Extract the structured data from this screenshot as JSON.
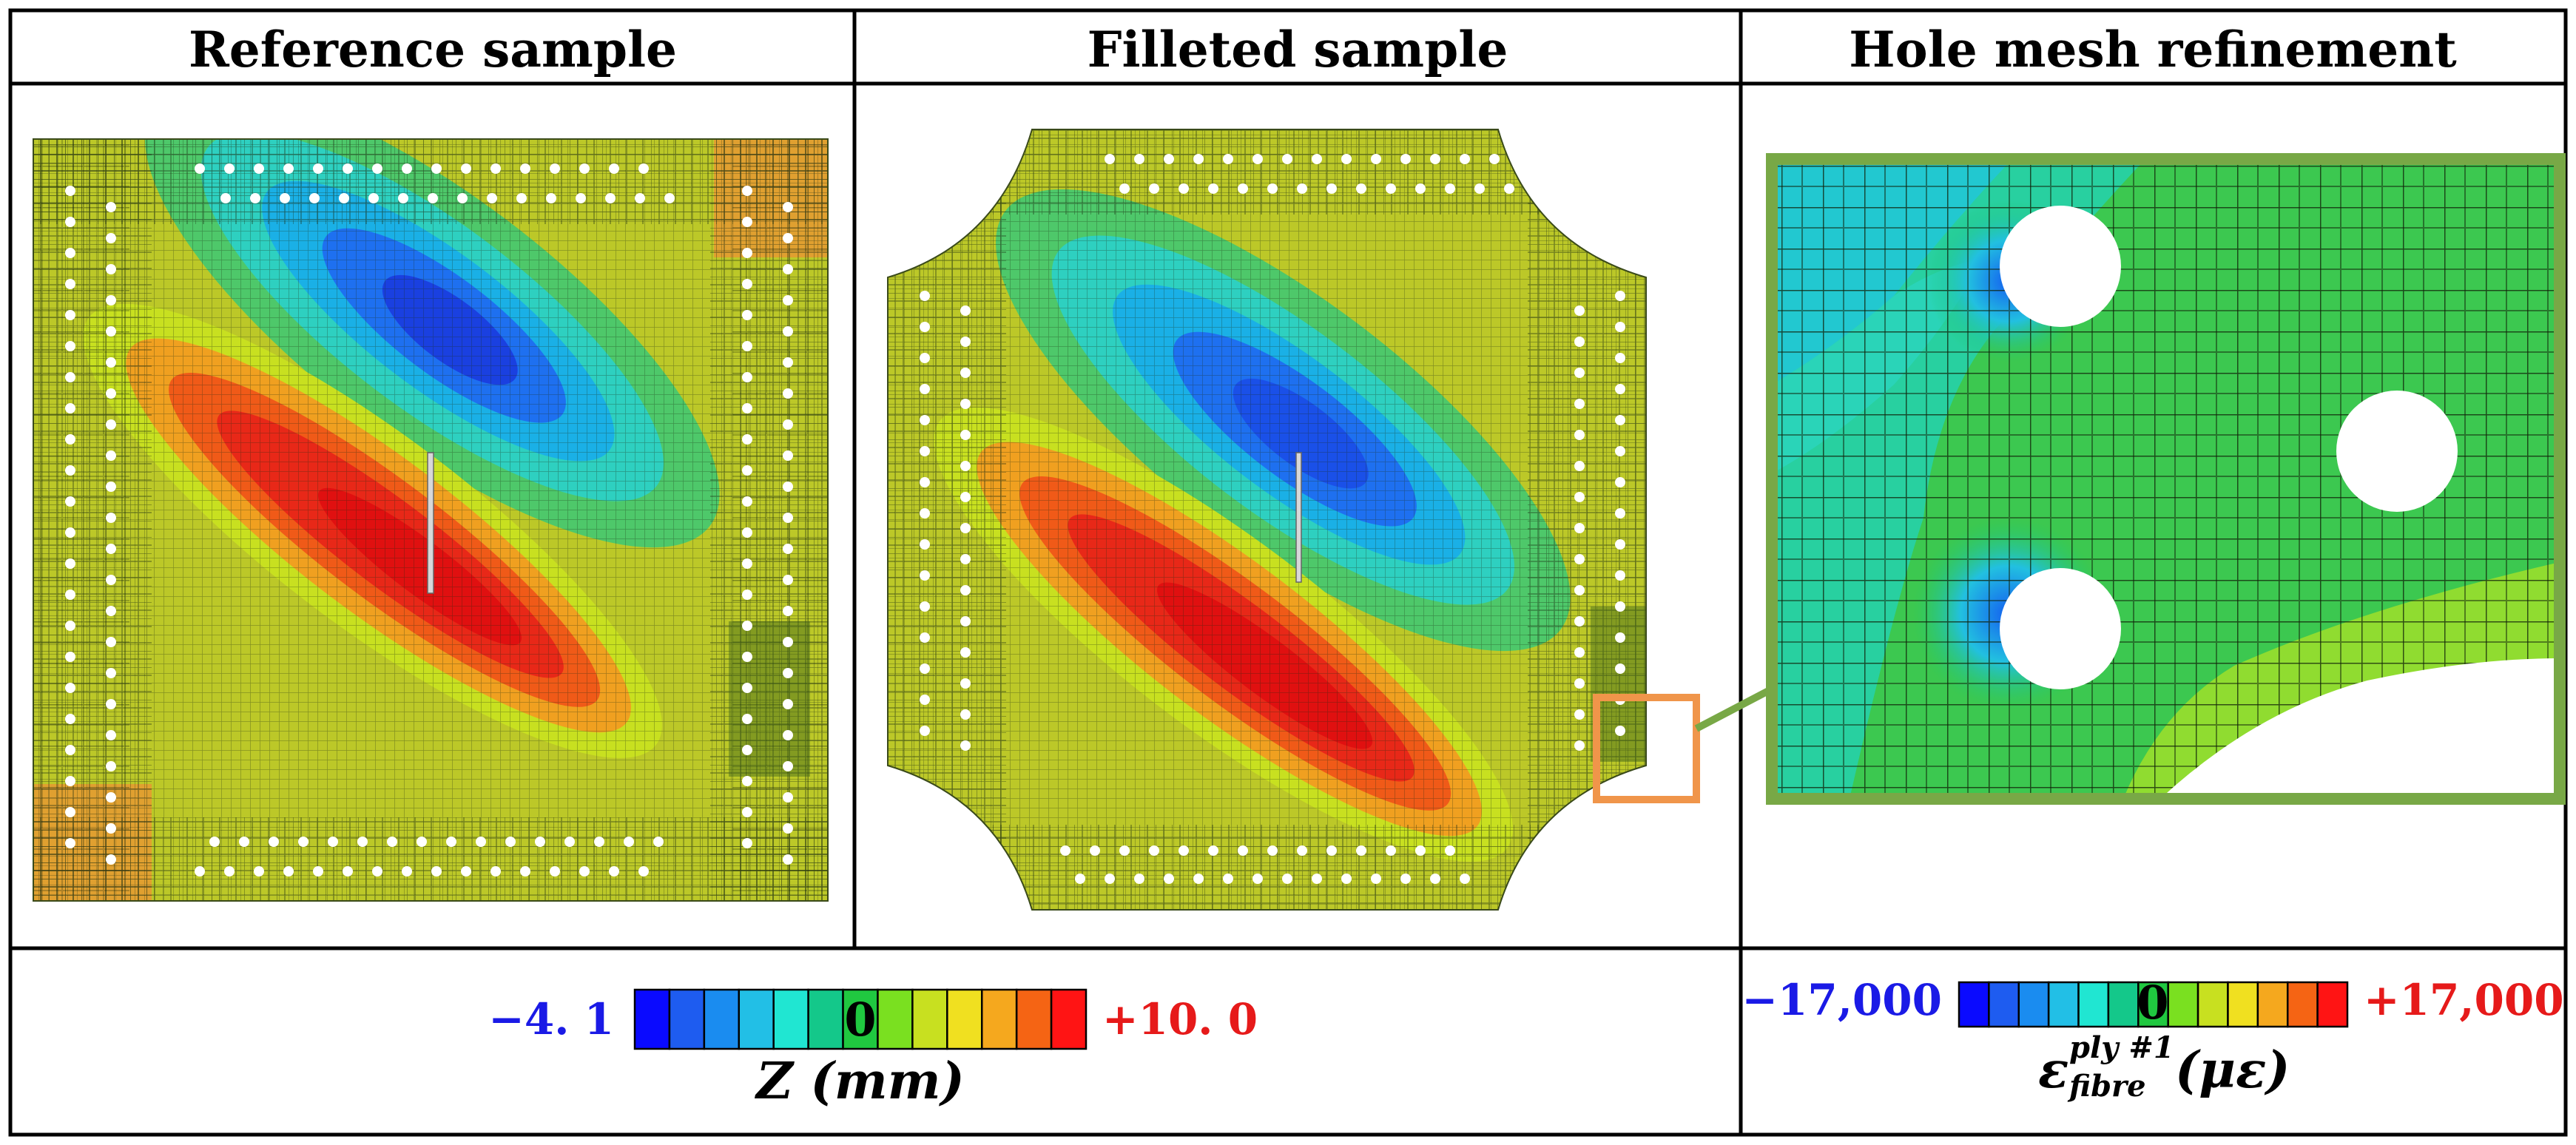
{
  "headers": {
    "reference": "Reference sample",
    "filleted": "Filleted sample",
    "refinement": "Hole mesh refinement"
  },
  "legend_z": {
    "min_label": "−4. 1",
    "zero_label": "0",
    "max_label": "+10. 0",
    "axis_label": "Z (mm)",
    "colors": [
      "#0a0aff",
      "#1e5cf0",
      "#1a8cf0",
      "#22bfe6",
      "#20e6d2",
      "#14c88a",
      "#20c840",
      "#7ae020",
      "#c8e020",
      "#f0e020",
      "#f5a81e",
      "#f56414",
      "#ff1414"
    ]
  },
  "legend_strain": {
    "min_label": "−17,000",
    "zero_label": "0",
    "max_label": "+17,000",
    "axis_main": "ε",
    "axis_sup": "ply #1",
    "axis_sub": "fibre",
    "axis_unit": "(με)",
    "colors": [
      "#0a0aff",
      "#1e5cf0",
      "#1a8cf0",
      "#22bfe6",
      "#20e6d2",
      "#14c88a",
      "#20c840",
      "#7ae020",
      "#c8e020",
      "#f0e020",
      "#f5a81e",
      "#f56414",
      "#ff1414"
    ]
  },
  "colors": {
    "frame": "#000000",
    "zoom_box": "#f0954a",
    "zoom_frame": "#78a846",
    "panel_base": "#bcc828"
  }
}
